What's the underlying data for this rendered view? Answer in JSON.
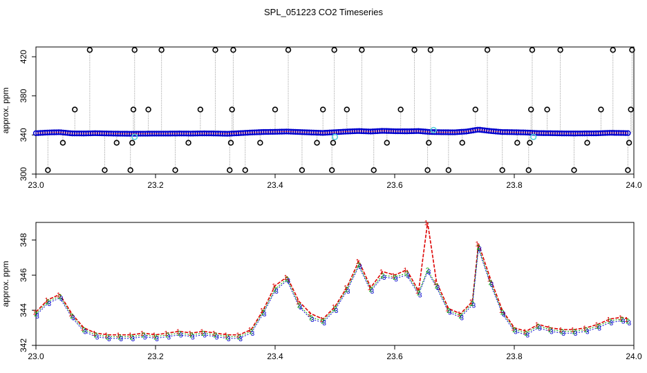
{
  "title": "SPL_051223  CO2 Timeseries",
  "colors": {
    "primary": "#0000cc",
    "secondary": "#00a000",
    "spike": "#dd0000",
    "flagged": "#55d0d8",
    "outlier": "#000000",
    "vline": "#909090"
  },
  "chart_data": [
    {
      "type": "scatter",
      "name": "overview",
      "title": "",
      "xlabel": "",
      "ylabel": "approx. ppm",
      "xlim": [
        23.0,
        24.0
      ],
      "ylim": [
        300,
        430
      ],
      "xticks": [
        23.0,
        23.2,
        23.4,
        23.6,
        23.8,
        24.0
      ],
      "xtick_labels": [
        "23.0",
        "23.2",
        "23.4",
        "23.6",
        "23.8",
        "24.0"
      ],
      "yticks": [
        300,
        340,
        380,
        420
      ],
      "ytick_labels": [
        "300",
        "340",
        "380",
        "420"
      ],
      "series": [
        {
          "name": "main",
          "x": [
            23.0,
            23.02,
            23.04,
            23.06,
            23.08,
            23.1,
            23.12,
            23.14,
            23.16,
            23.18,
            23.2,
            23.22,
            23.24,
            23.26,
            23.28,
            23.3,
            23.32,
            23.34,
            23.36,
            23.38,
            23.4,
            23.42,
            23.44,
            23.46,
            23.48,
            23.5,
            23.52,
            23.54,
            23.56,
            23.58,
            23.6,
            23.62,
            23.64,
            23.66,
            23.68,
            23.7,
            23.72,
            23.74,
            23.76,
            23.78,
            23.8,
            23.82,
            23.84,
            23.86,
            23.88,
            23.9,
            23.92,
            23.94,
            23.96,
            23.98,
            23.99
          ],
          "y": [
            341.8,
            342.5,
            342.8,
            341.6,
            341.5,
            341.8,
            341.5,
            341.3,
            341.2,
            341.3,
            341.4,
            341.4,
            341.5,
            341.4,
            341.6,
            341.5,
            341.2,
            341.8,
            342.5,
            343.0,
            343.2,
            343.5,
            343.0,
            342.5,
            342.1,
            342.8,
            343.5,
            344.0,
            343.5,
            344.2,
            343.8,
            343.7,
            344.0,
            343.0,
            342.8,
            342.7,
            343.5,
            345.5,
            344.0,
            343.0,
            342.8,
            342.5,
            341.9,
            341.8,
            341.6,
            341.5,
            341.6,
            341.7,
            342.2,
            342.0,
            341.9
          ]
        }
      ],
      "flagged": {
        "x": [
          23.165,
          23.5,
          23.665,
          23.832
        ],
        "y": [
          338,
          338,
          345,
          338
        ]
      },
      "outliers": {
        "x": [
          23.02,
          23.045,
          23.065,
          23.09,
          23.115,
          23.135,
          23.158,
          23.161,
          23.163,
          23.165,
          23.188,
          23.21,
          23.233,
          23.255,
          23.275,
          23.3,
          23.324,
          23.326,
          23.328,
          23.33,
          23.35,
          23.375,
          23.4,
          23.422,
          23.445,
          23.47,
          23.48,
          23.495,
          23.497,
          23.499,
          23.52,
          23.545,
          23.565,
          23.587,
          23.61,
          23.633,
          23.655,
          23.657,
          23.66,
          23.69,
          23.713,
          23.735,
          23.755,
          23.78,
          23.805,
          23.824,
          23.826,
          23.828,
          23.83,
          23.855,
          23.877,
          23.9,
          23.922,
          23.945,
          23.965,
          23.99,
          23.992,
          23.995,
          23.997
        ],
        "y": [
          304,
          332,
          366,
          427,
          304,
          332,
          304,
          332,
          366,
          427,
          366,
          427,
          304,
          332,
          366,
          427,
          304,
          332,
          366,
          427,
          304,
          332,
          366,
          427,
          304,
          332,
          366,
          304,
          332,
          427,
          366,
          427,
          304,
          332,
          366,
          427,
          304,
          332,
          427,
          304,
          332,
          366,
          427,
          304,
          332,
          304,
          332,
          366,
          427,
          366,
          427,
          304,
          332,
          366,
          427,
          304,
          332,
          366,
          427
        ]
      }
    },
    {
      "type": "line",
      "name": "detail",
      "title": "",
      "xlabel": "",
      "ylabel": "approx. ppm",
      "xlim": [
        23.0,
        24.0
      ],
      "ylim": [
        342,
        349
      ],
      "xticks": [
        23.0,
        23.2,
        23.4,
        23.6,
        23.8,
        24.0
      ],
      "xtick_labels": [
        "23.0",
        "23.2",
        "23.4",
        "23.6",
        "23.8",
        "24.0"
      ],
      "yticks": [
        342,
        344,
        346,
        348
      ],
      "ytick_labels": [
        "342",
        "344",
        "346",
        "348"
      ],
      "series": [
        {
          "name": "1",
          "marker": "1",
          "x": [
            23.0,
            23.02,
            23.04,
            23.06,
            23.08,
            23.1,
            23.12,
            23.14,
            23.16,
            23.18,
            23.2,
            23.22,
            23.24,
            23.26,
            23.28,
            23.3,
            23.32,
            23.34,
            23.36,
            23.38,
            23.4,
            23.42,
            23.44,
            23.46,
            23.48,
            23.5,
            23.52,
            23.54,
            23.56,
            23.58,
            23.6,
            23.62,
            23.64,
            23.655,
            23.67,
            23.69,
            23.71,
            23.73,
            23.74,
            23.76,
            23.78,
            23.8,
            23.82,
            23.84,
            23.86,
            23.88,
            23.9,
            23.92,
            23.94,
            23.96,
            23.98,
            23.99
          ],
          "y": [
            343.9,
            344.6,
            344.9,
            343.8,
            343.0,
            342.7,
            342.6,
            342.6,
            342.6,
            342.7,
            342.6,
            342.7,
            342.8,
            342.7,
            342.8,
            342.7,
            342.6,
            342.6,
            342.9,
            344.0,
            345.4,
            345.9,
            344.5,
            343.8,
            343.5,
            344.2,
            345.3,
            346.8,
            345.3,
            346.2,
            346.0,
            346.3,
            345.1,
            349.0,
            345.6,
            344.1,
            343.8,
            344.5,
            347.8,
            345.8,
            344.0,
            343.0,
            342.8,
            343.2,
            343.0,
            342.9,
            342.9,
            343.0,
            343.2,
            343.5,
            343.6,
            343.5
          ]
        },
        {
          "name": "2",
          "marker": "2",
          "x": [
            23.0,
            23.02,
            23.04,
            23.06,
            23.08,
            23.1,
            23.12,
            23.14,
            23.16,
            23.18,
            23.2,
            23.22,
            23.24,
            23.26,
            23.28,
            23.3,
            23.32,
            23.34,
            23.36,
            23.38,
            23.4,
            23.42,
            23.44,
            23.46,
            23.48,
            23.5,
            23.52,
            23.54,
            23.56,
            23.58,
            23.6,
            23.62,
            23.64,
            23.655,
            23.67,
            23.69,
            23.71,
            23.73,
            23.74,
            23.76,
            23.78,
            23.8,
            23.82,
            23.84,
            23.86,
            23.88,
            23.9,
            23.92,
            23.94,
            23.96,
            23.98,
            23.99
          ],
          "y": [
            343.8,
            344.5,
            344.8,
            343.7,
            342.9,
            342.6,
            342.5,
            342.5,
            342.5,
            342.6,
            342.5,
            342.6,
            342.7,
            342.6,
            342.7,
            342.6,
            342.5,
            342.5,
            342.8,
            343.9,
            345.2,
            345.8,
            344.3,
            343.6,
            343.4,
            344.1,
            345.2,
            346.6,
            345.2,
            346.0,
            345.9,
            346.1,
            345.0,
            346.3,
            345.4,
            344.0,
            343.7,
            344.4,
            347.6,
            345.6,
            343.9,
            342.9,
            342.7,
            343.1,
            342.9,
            342.8,
            342.8,
            342.9,
            343.1,
            343.4,
            343.5,
            343.4
          ]
        },
        {
          "name": "3",
          "marker": "3",
          "x": [
            23.0,
            23.02,
            23.04,
            23.06,
            23.08,
            23.1,
            23.12,
            23.14,
            23.16,
            23.18,
            23.2,
            23.22,
            23.24,
            23.26,
            23.28,
            23.3,
            23.32,
            23.34,
            23.36,
            23.38,
            23.4,
            23.42,
            23.44,
            23.46,
            23.48,
            23.5,
            23.52,
            23.54,
            23.56,
            23.58,
            23.6,
            23.62,
            23.64,
            23.655,
            23.67,
            23.69,
            23.71,
            23.73,
            23.74,
            23.76,
            23.78,
            23.8,
            23.82,
            23.84,
            23.86,
            23.88,
            23.9,
            23.92,
            23.94,
            23.96,
            23.98,
            23.99
          ],
          "y": [
            343.7,
            344.4,
            344.7,
            343.6,
            342.8,
            342.5,
            342.4,
            342.4,
            342.4,
            342.5,
            342.4,
            342.5,
            342.6,
            342.5,
            342.6,
            342.5,
            342.4,
            342.4,
            342.7,
            343.8,
            345.1,
            345.7,
            344.2,
            343.5,
            343.3,
            344.0,
            345.1,
            346.5,
            345.1,
            345.9,
            345.8,
            346.0,
            344.9,
            346.2,
            345.3,
            343.9,
            343.6,
            344.3,
            347.5,
            345.5,
            343.8,
            342.8,
            342.6,
            343.0,
            342.8,
            342.7,
            342.7,
            342.8,
            343.0,
            343.3,
            343.4,
            343.3
          ]
        }
      ]
    }
  ]
}
